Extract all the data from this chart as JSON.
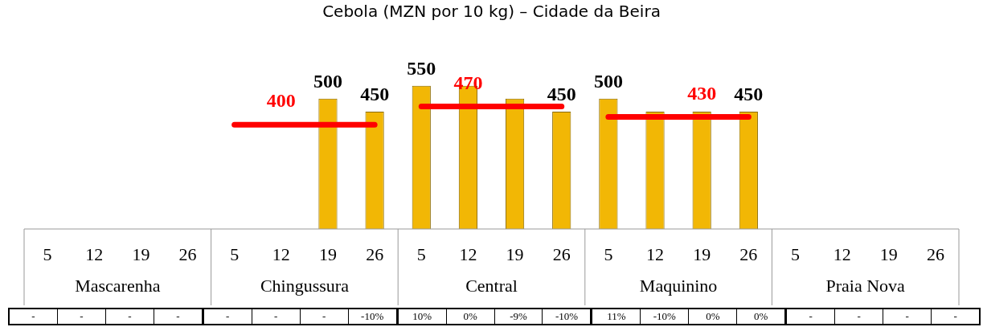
{
  "chart_data": [
    {
      "type": "bar",
      "title": "Cebola (MZN por 10 kg) – Cidade da Beira",
      "categories": [
        "5",
        "12",
        "19",
        "26",
        "5",
        "12",
        "19",
        "26",
        "5",
        "12",
        "19",
        "26",
        "5",
        "12",
        "19",
        "26",
        "5",
        "12",
        "19",
        "26"
      ],
      "series": [
        {
          "color": "#f2b705",
          "values": [
            null,
            null,
            null,
            null,
            null,
            null,
            500,
            450,
            550,
            550,
            500,
            450,
            500,
            450,
            450,
            450,
            null,
            null,
            null,
            null
          ],
          "value_labels": [
            null,
            null,
            null,
            null,
            null,
            null,
            "500",
            "450",
            "550",
            null,
            null,
            "450",
            "500",
            null,
            null,
            "450",
            null,
            null,
            null,
            null
          ]
        },
        {
          "type": "line",
          "color": "#ff0000",
          "values": [
            null,
            null,
            null,
            null,
            400,
            400,
            400,
            400,
            null,
            null,
            null,
            null,
            null,
            null,
            null,
            null,
            null,
            null,
            null,
            null
          ],
          "value_labels": [
            null,
            null,
            null,
            null,
            null,
            "400",
            null,
            null,
            null,
            null,
            null,
            null,
            null,
            null,
            null,
            null,
            null,
            null,
            null,
            null
          ]
        },
        {
          "type": "line",
          "color": "#ff0000",
          "values": [
            null,
            null,
            null,
            null,
            null,
            null,
            null,
            null,
            470,
            470,
            470,
            470,
            null,
            null,
            null,
            null,
            null,
            null,
            null,
            null
          ],
          "value_labels": [
            null,
            null,
            null,
            null,
            null,
            null,
            null,
            null,
            null,
            "470",
            null,
            null,
            null,
            null,
            null,
            null,
            null,
            null,
            null,
            null
          ]
        },
        {
          "type": "line",
          "color": "#ff0000",
          "values": [
            null,
            null,
            null,
            null,
            null,
            null,
            null,
            null,
            null,
            null,
            null,
            null,
            430,
            430,
            430,
            430,
            null,
            null,
            null,
            null
          ],
          "value_labels": [
            null,
            null,
            null,
            null,
            null,
            null,
            null,
            null,
            null,
            null,
            null,
            null,
            null,
            null,
            "430",
            null,
            null,
            null,
            null,
            null
          ]
        }
      ],
      "annotations": [
        "Mascarenha",
        "Chingussura",
        "Central",
        "Maquinino",
        "Praia Nova"
      ]
    },
    {
      "type": "other",
      "annotations": [
        "-",
        "-",
        "-",
        "-",
        "-",
        "-",
        "-",
        "-10%",
        "10%",
        "0%",
        "-9%",
        "-10%",
        "11%",
        "-10%",
        "0%",
        "0%",
        "-",
        "-",
        "-",
        "-"
      ]
    }
  ]
}
